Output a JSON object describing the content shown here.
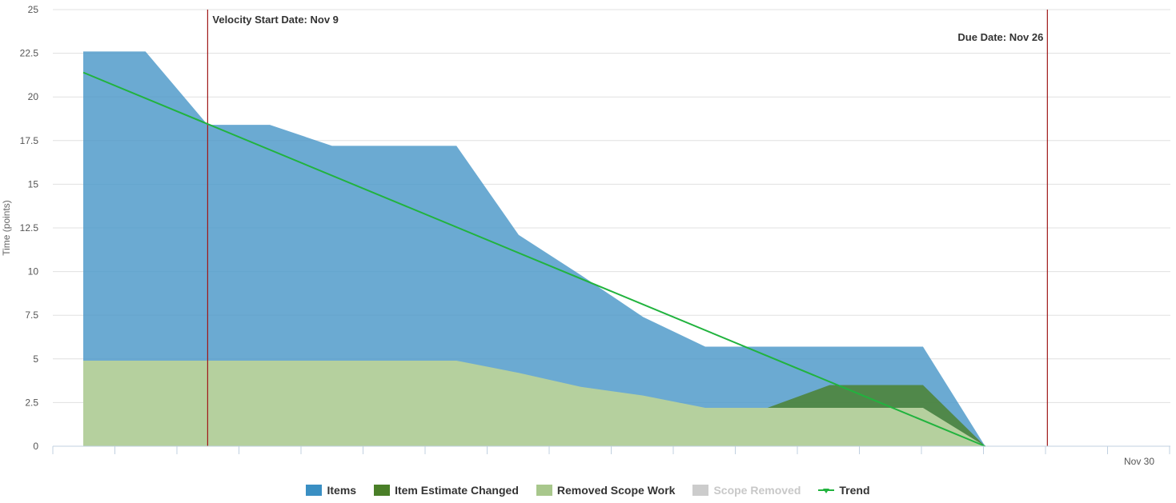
{
  "chart_data": {
    "type": "area",
    "ylabel": "Time (points)",
    "ylim": [
      0,
      25
    ],
    "yticks": [
      "0",
      "2.5",
      "5",
      "7.5",
      "10",
      "12.5",
      "15",
      "17.5",
      "20",
      "22.5",
      "25"
    ],
    "x_tick_label": "Nov 30",
    "series": [
      {
        "name": "Items",
        "color": "#4a97c8",
        "points": [
          [
            1,
            22.6
          ],
          [
            2,
            22.6
          ],
          [
            3,
            18.4
          ],
          [
            4,
            18.4
          ],
          [
            5,
            17.2
          ],
          [
            7,
            17.2
          ],
          [
            8,
            12.1
          ],
          [
            9,
            9.8
          ],
          [
            10,
            7.4
          ],
          [
            11,
            5.7
          ],
          [
            14.5,
            5.7
          ],
          [
            15.5,
            0
          ],
          [
            18,
            0
          ]
        ]
      },
      {
        "name": "Item Estimate Changed",
        "color": "#4a7f28",
        "points": [
          [
            12,
            2.2
          ],
          [
            13,
            3.5
          ],
          [
            14.5,
            3.5
          ],
          [
            15.5,
            0
          ]
        ]
      },
      {
        "name": "Removed Scope Work",
        "color": "#b5d09e",
        "points": [
          [
            1,
            4.9
          ],
          [
            7,
            4.9
          ],
          [
            8,
            4.2
          ],
          [
            9,
            3.4
          ],
          [
            10,
            2.9
          ],
          [
            11,
            2.2
          ],
          [
            14.5,
            2.2
          ],
          [
            15.5,
            0
          ],
          [
            18,
            0
          ]
        ]
      },
      {
        "name": "Scope Removed",
        "color": "#cccccc",
        "enabled": false,
        "points": []
      },
      {
        "name": "Trend",
        "color": "#21b33e",
        "points": [
          [
            1,
            21.4
          ],
          [
            15.5,
            0
          ]
        ]
      }
    ],
    "markers": [
      {
        "label": "Velocity Start Date: Nov 9",
        "x": 3,
        "label_side": "right"
      },
      {
        "label": "Due Date: Nov 26",
        "x": 16.5,
        "label_side": "left"
      }
    ],
    "grid": true,
    "legend_position": "bottom"
  }
}
